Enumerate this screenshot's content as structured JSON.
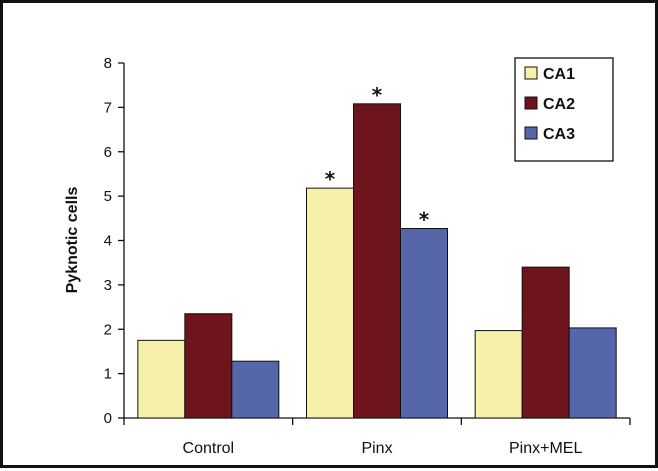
{
  "chart_data": {
    "type": "bar",
    "title": "",
    "xlabel": "",
    "ylabel": "Pyknotic cells",
    "ylim": [
      0,
      8
    ],
    "yticks": [
      "0",
      "1",
      "2",
      "3",
      "4",
      "5",
      "6",
      "7",
      "8"
    ],
    "categories": [
      "Control",
      "Pinx",
      "Pinx+MEL"
    ],
    "series": [
      {
        "name": "CA1",
        "color": "#f6f0a8",
        "values": [
          1.75,
          5.18,
          1.97
        ]
      },
      {
        "name": "CA2",
        "color": "#6e141c",
        "values": [
          2.35,
          7.08,
          3.4
        ]
      },
      {
        "name": "CA3",
        "color": "#5566aa",
        "values": [
          1.28,
          4.27,
          2.03
        ]
      }
    ],
    "significance_marker": "*",
    "significant": [
      [
        false,
        true,
        false
      ],
      [
        false,
        true,
        false
      ],
      [
        false,
        true,
        false
      ]
    ],
    "legend_position": "top-right",
    "grid": false
  }
}
